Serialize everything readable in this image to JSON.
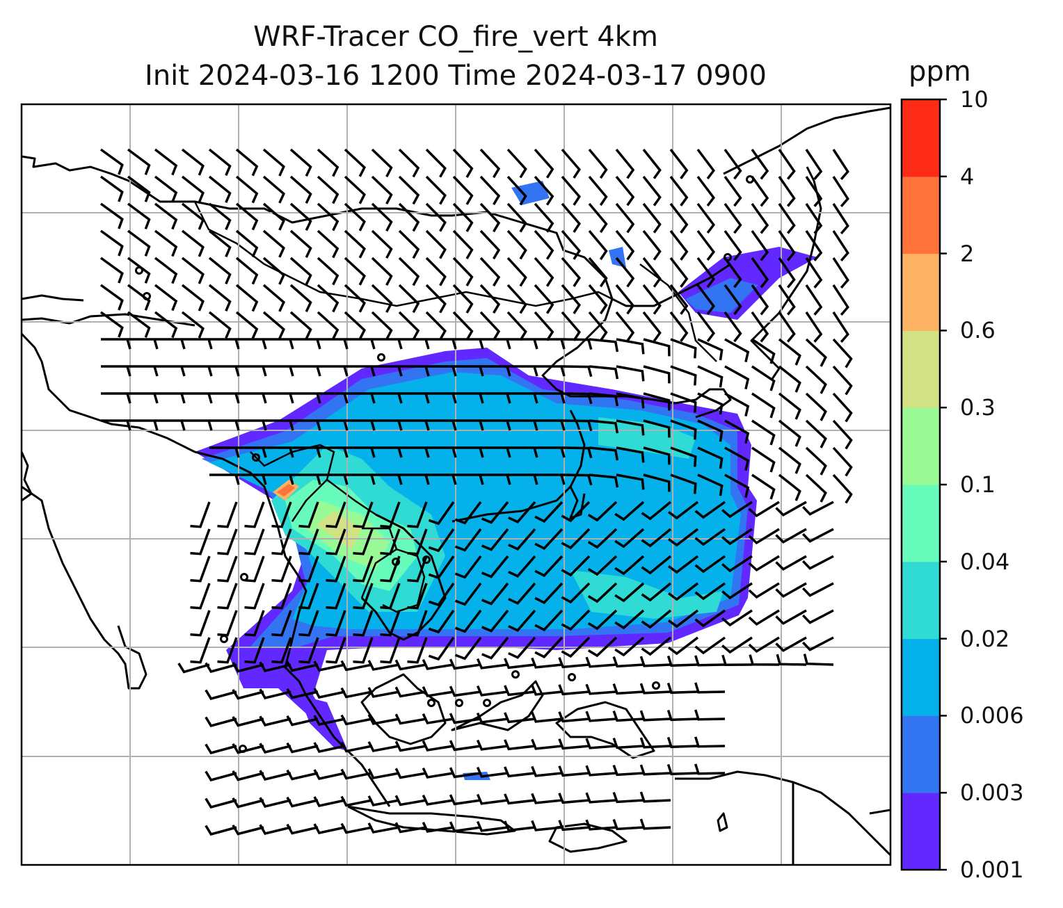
{
  "title": {
    "line1": "WRF-Tracer CO_fire_vert 4km",
    "line2": "Init 2024-03-16 1200 Time 2024-03-17 0900"
  },
  "colorbar": {
    "unit": "ppm",
    "levels": [
      "0.001",
      "0.003",
      "0.006",
      "0.02",
      "0.04",
      "0.1",
      "0.3",
      "0.6",
      "2",
      "4",
      "10"
    ],
    "colors": [
      "#6129ff",
      "#3374f2",
      "#05b1ea",
      "#2fdbd4",
      "#67fcbc",
      "#99f994",
      "#d3e185",
      "#fdb162",
      "#ff723a",
      "#fe2b17"
    ]
  },
  "map": {
    "variable": "CO_fire_vert",
    "overlay": "wind barbs",
    "gridlines": true,
    "coastlines": true,
    "borders": true
  }
}
